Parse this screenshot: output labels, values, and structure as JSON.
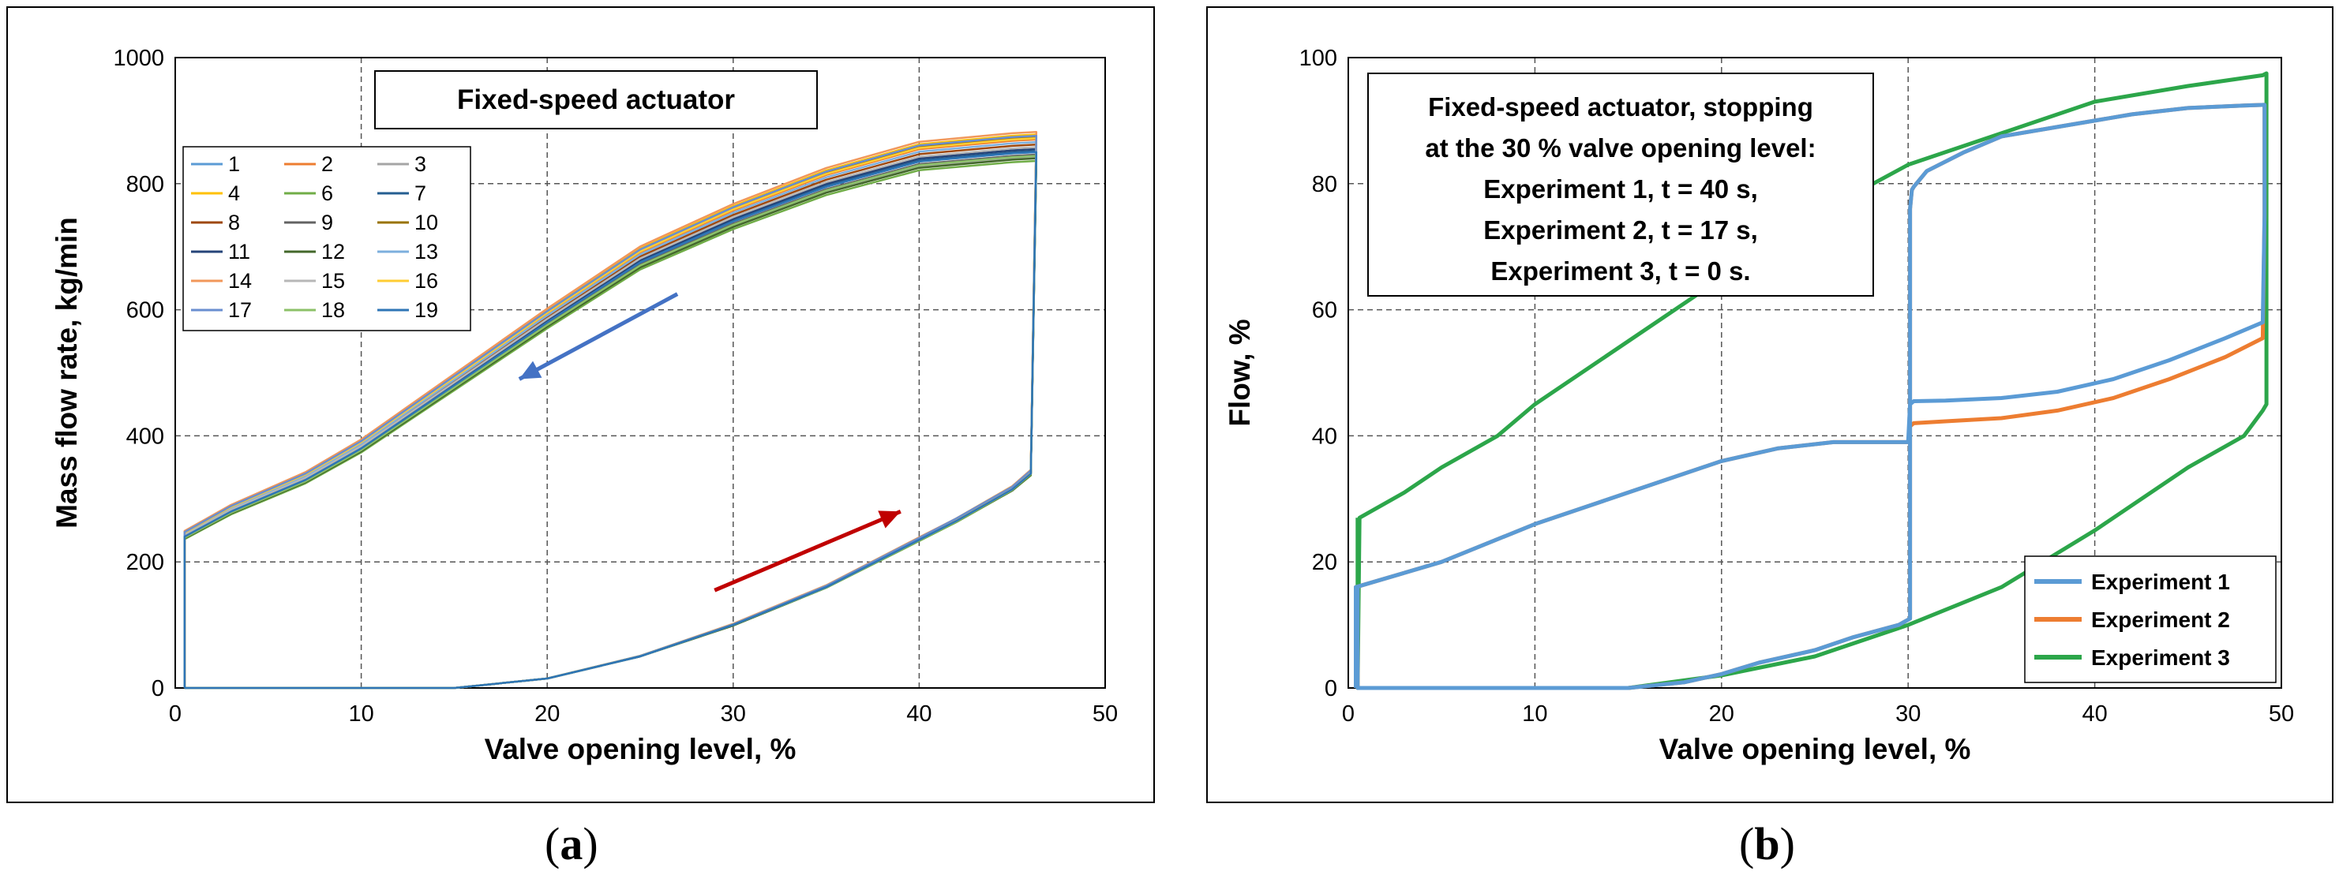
{
  "panels": {
    "a": {
      "caption_open": "(",
      "caption_letter": "a",
      "caption_close": ")"
    },
    "b": {
      "caption_open": "(",
      "caption_letter": "b",
      "caption_close": ")"
    }
  },
  "chart_data": [
    {
      "type": "line",
      "title": "Fixed-speed actuator",
      "xlabel": "Valve opening level, %",
      "ylabel": "Mass flow rate,  kg/min",
      "xlim": [
        0,
        50
      ],
      "ylim": [
        0,
        1000
      ],
      "xticks": [
        "0",
        "10",
        "20",
        "30",
        "40",
        "50"
      ],
      "yticks": [
        "0",
        "200",
        "400",
        "600",
        "800",
        "1000"
      ],
      "grid": true,
      "legend": "top-left",
      "series_colors": {
        "1": "#5b9bd5",
        "2": "#ed7d31",
        "3": "#a5a5a5",
        "4": "#ffc000",
        "6": "#70ad47",
        "7": "#255e91",
        "8": "#9e480e",
        "9": "#636363",
        "10": "#997300",
        "11": "#264478",
        "12": "#43682b",
        "13": "#7cafdd",
        "14": "#f1975a",
        "15": "#b7b7b7",
        "16": "#ffcd33",
        "17": "#698ed0",
        "18": "#8cc168",
        "19": "#2e75b6"
      },
      "series_offsets": {
        "1": 0,
        "2": 20,
        "3": -8,
        "4": 28,
        "6": -14,
        "7": 2,
        "8": 12,
        "9": -4,
        "10": 24,
        "11": 5,
        "12": -10,
        "13": 16,
        "14": 32,
        "15": 8,
        "16": 22,
        "17": 26,
        "18": -6,
        "19": 0
      },
      "series": [
        {
          "name": "1"
        },
        {
          "name": "2"
        },
        {
          "name": "3"
        },
        {
          "name": "4"
        },
        {
          "name": "6"
        },
        {
          "name": "7"
        },
        {
          "name": "8"
        },
        {
          "name": "9"
        },
        {
          "name": "10"
        },
        {
          "name": "11"
        },
        {
          "name": "12"
        },
        {
          "name": "13"
        },
        {
          "name": "14"
        },
        {
          "name": "15"
        },
        {
          "name": "16"
        },
        {
          "name": "17"
        },
        {
          "name": "18"
        },
        {
          "name": "19"
        }
      ],
      "base_curve": {
        "opening_x": [
          0.5,
          5,
          10,
          15,
          20,
          25,
          30,
          35,
          40,
          42,
          45,
          46
        ],
        "opening_y": [
          0,
          0,
          0,
          0,
          15,
          50,
          100,
          160,
          235,
          265,
          315,
          340
        ],
        "closing_x": [
          46,
          46.3,
          45,
          40,
          35,
          30,
          25,
          20,
          15,
          10,
          7,
          3,
          0.5
        ],
        "closing_y": [
          340,
          850,
          848,
          835,
          795,
          740,
          675,
          580,
          480,
          380,
          330,
          280,
          240
        ]
      },
      "annotations": [
        {
          "type": "arrow",
          "color": "#4472c4",
          "from": [
            27,
            625
          ],
          "to": [
            18.5,
            490
          ]
        },
        {
          "type": "arrow",
          "color": "#c00000",
          "from": [
            29,
            155
          ],
          "to": [
            39,
            280
          ]
        }
      ]
    },
    {
      "type": "line",
      "title": "",
      "xlabel": "Valve opening level, %",
      "ylabel": "Flow, %",
      "xlim": [
        0,
        50
      ],
      "ylim": [
        0,
        100
      ],
      "xticks": [
        "0",
        "10",
        "20",
        "30",
        "40",
        "50"
      ],
      "yticks": [
        "0",
        "20",
        "40",
        "60",
        "80",
        "100"
      ],
      "grid": true,
      "legend": "bottom-right",
      "annotation_lines": [
        "Fixed-speed actuator, stopping",
        "at the 30 % valve opening level:",
        "Experiment 1,  t = 40 s,",
        "Experiment 2,  t = 17 s,",
        "Experiment 3,  t  =  0 s."
      ],
      "series": [
        {
          "name": "Experiment 1",
          "color": "#5b9bd5",
          "x": [
            0.4,
            0.4,
            5,
            10,
            15,
            20,
            23,
            26,
            30,
            30.1,
            30.3,
            32,
            35,
            38,
            41,
            44,
            47,
            49,
            49.1,
            49.1,
            48,
            45,
            42,
            40,
            38,
            35,
            33,
            31,
            30.3,
            30.2,
            30.1,
            30.1,
            29.5,
            27,
            25,
            22,
            20,
            18,
            15,
            14,
            5,
            0.5,
            0.5
          ],
          "y": [
            0,
            16,
            20,
            26,
            31,
            36,
            38,
            39,
            39,
            45,
            45.5,
            45.6,
            46,
            47,
            49,
            52,
            55.5,
            58,
            75,
            92.5,
            92.4,
            92,
            91,
            90,
            89,
            87.5,
            85,
            82,
            79.5,
            79,
            76,
            11,
            10,
            8,
            6,
            4,
            2.2,
            0.9,
            0,
            0,
            0,
            0,
            16
          ]
        },
        {
          "name": "Experiment 2",
          "color": "#ed7d31",
          "x": [
            0.4,
            0.4,
            5,
            10,
            15,
            20,
            23,
            26,
            30,
            30.1,
            30.3,
            32,
            35,
            38,
            41,
            44,
            47,
            49,
            49.1,
            49.1,
            48,
            45,
            42,
            40,
            38,
            35,
            33,
            31,
            30.3,
            30.2,
            30.1,
            30.1,
            29.5,
            27,
            25,
            22,
            20,
            18,
            15,
            14,
            5,
            0.5,
            0.5
          ],
          "y": [
            0,
            16,
            20,
            26,
            31,
            36,
            38,
            39,
            39,
            41.5,
            42,
            42.3,
            42.8,
            44,
            46,
            49,
            52.5,
            55.5,
            75,
            92.5,
            92.4,
            92,
            91,
            90,
            89,
            87.5,
            85,
            82,
            79.5,
            79,
            76,
            11,
            10,
            8,
            6,
            4,
            2.2,
            0.9,
            0,
            0,
            0,
            0,
            16
          ]
        },
        {
          "name": "Experiment 3",
          "color": "#2ca64a",
          "x": [
            0.5,
            0.6,
            3,
            5,
            8,
            10,
            15,
            20,
            25,
            30,
            35,
            40,
            45,
            49,
            49.2,
            49.2,
            49,
            48,
            45,
            40,
            35,
            30,
            25,
            20,
            15,
            10,
            5,
            0.5,
            0.5
          ],
          "y": [
            0,
            27,
            31,
            35,
            40,
            45,
            55,
            65,
            75,
            83,
            88,
            93,
            95.5,
            97.2,
            97.5,
            45,
            44,
            40,
            35,
            25,
            16,
            10,
            5,
            2,
            0,
            0,
            0,
            0,
            27
          ]
        }
      ]
    }
  ]
}
